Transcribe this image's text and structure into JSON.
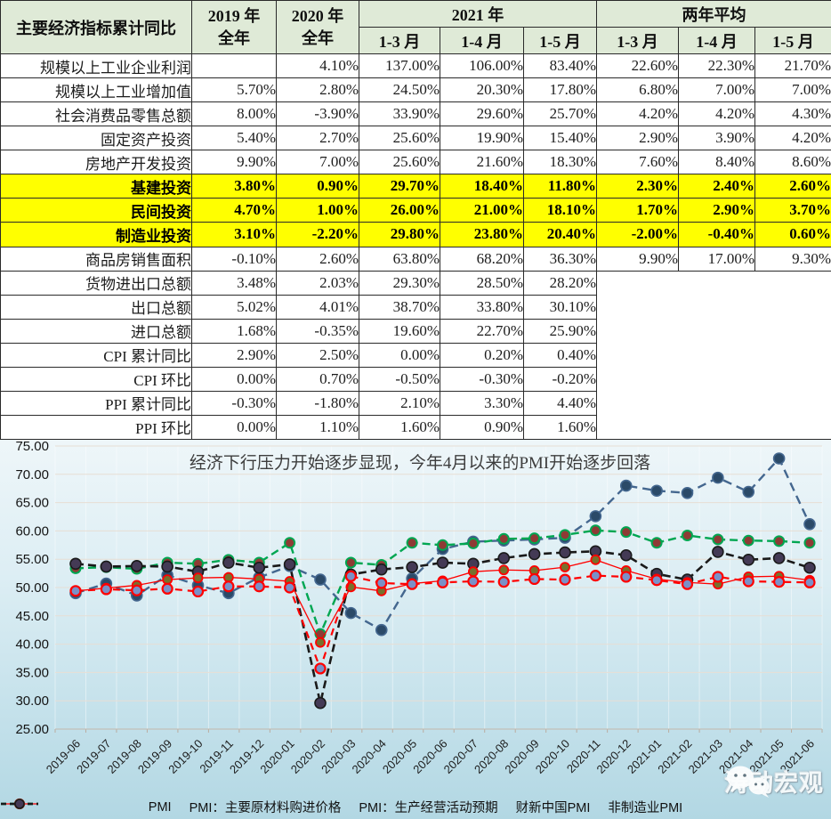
{
  "table": {
    "header": {
      "indicator": "主要经济指标累计同比",
      "col2019": [
        "2019 年",
        "全年"
      ],
      "col2020": [
        "2020 年",
        "全年"
      ],
      "group2021": "2021 年",
      "group2yr": "两年平均",
      "months": [
        "1-3 月",
        "1-4 月",
        "1-5 月"
      ]
    },
    "rows": [
      {
        "name": "规模以上工业企业利润",
        "highlight": false,
        "values": [
          "",
          "4.10%",
          "137.00%",
          "106.00%",
          "83.40%",
          "22.60%",
          "22.30%",
          "21.70%"
        ]
      },
      {
        "name": "规模以上工业增加值",
        "highlight": false,
        "values": [
          "5.70%",
          "2.80%",
          "24.50%",
          "20.30%",
          "17.80%",
          "6.80%",
          "7.00%",
          "7.00%"
        ]
      },
      {
        "name": "社会消费品零售总额",
        "highlight": false,
        "values": [
          "8.00%",
          "-3.90%",
          "33.90%",
          "29.60%",
          "25.70%",
          "4.20%",
          "4.20%",
          "4.30%"
        ]
      },
      {
        "name": "固定资产投资",
        "highlight": false,
        "values": [
          "5.40%",
          "2.70%",
          "25.60%",
          "19.90%",
          "15.40%",
          "2.90%",
          "3.90%",
          "4.20%"
        ]
      },
      {
        "name": "房地产开发投资",
        "highlight": false,
        "values": [
          "9.90%",
          "7.00%",
          "25.60%",
          "21.60%",
          "18.30%",
          "7.60%",
          "8.40%",
          "8.60%"
        ]
      },
      {
        "name": "基建投资",
        "highlight": true,
        "values": [
          "3.80%",
          "0.90%",
          "29.70%",
          "18.40%",
          "11.80%",
          "2.30%",
          "2.40%",
          "2.60%"
        ]
      },
      {
        "name": "民间投资",
        "highlight": true,
        "values": [
          "4.70%",
          "1.00%",
          "26.00%",
          "21.00%",
          "18.10%",
          "1.70%",
          "2.90%",
          "3.70%"
        ]
      },
      {
        "name": "制造业投资",
        "highlight": true,
        "values": [
          "3.10%",
          "-2.20%",
          "29.80%",
          "23.80%",
          "20.40%",
          "-2.00%",
          "-0.40%",
          "0.60%"
        ]
      },
      {
        "name": "商品房销售面积",
        "highlight": false,
        "values": [
          "-0.10%",
          "2.60%",
          "63.80%",
          "68.20%",
          "36.30%",
          "9.90%",
          "17.00%",
          "9.30%"
        ]
      },
      {
        "name": "货物进出口总额",
        "highlight": false,
        "values": [
          "3.48%",
          "2.03%",
          "29.30%",
          "28.50%",
          "28.20%"
        ]
      },
      {
        "name": "出口总额",
        "highlight": false,
        "values": [
          "5.02%",
          "4.01%",
          "38.70%",
          "33.80%",
          "30.10%"
        ]
      },
      {
        "name": "进口总额",
        "highlight": false,
        "values": [
          "1.68%",
          "-0.35%",
          "19.60%",
          "22.70%",
          "25.90%"
        ]
      },
      {
        "name": "CPI 累计同比",
        "highlight": false,
        "values": [
          "2.90%",
          "2.50%",
          "0.00%",
          "0.20%",
          "0.40%"
        ]
      },
      {
        "name": "CPI 环比",
        "highlight": false,
        "values": [
          "0.00%",
          "0.70%",
          "-0.50%",
          "-0.30%",
          "-0.20%"
        ]
      },
      {
        "name": "PPI 累计同比",
        "highlight": false,
        "values": [
          "-0.30%",
          "-1.80%",
          "2.10%",
          "3.30%",
          "4.40%"
        ]
      },
      {
        "name": "PPI 环比",
        "highlight": false,
        "values": [
          "0.00%",
          "1.10%",
          "1.60%",
          "0.90%",
          "1.60%"
        ]
      }
    ],
    "highlight_color": "#FFFF00",
    "header_color": "#DFEAD7"
  },
  "chart_data": {
    "type": "line",
    "title": "经济下行压力开始逐步显现，今年4月以来的PMI开始逐步回落",
    "x": [
      "2019-06",
      "2019-07",
      "2019-08",
      "2019-09",
      "2019-10",
      "2019-11",
      "2019-12",
      "2020-01",
      "2020-02",
      "2020-03",
      "2020-04",
      "2020-05",
      "2020-06",
      "2020-07",
      "2020-08",
      "2020-09",
      "2020-10",
      "2020-11",
      "2020-12",
      "2021-01",
      "2021-02",
      "2021-03",
      "2021-04",
      "2021-05",
      "2021-06"
    ],
    "series": [
      {
        "name": "PMI",
        "line_color": "#FF0000",
        "marker_color": "#7B90C7",
        "dash": "dashed",
        "values": [
          49.4,
          49.7,
          49.5,
          49.8,
          49.3,
          50.2,
          50.2,
          50.0,
          35.7,
          52.0,
          50.8,
          50.6,
          50.9,
          51.1,
          51.0,
          51.5,
          51.4,
          52.1,
          51.9,
          51.3,
          50.6,
          51.9,
          51.1,
          51.0,
          50.9
        ]
      },
      {
        "name": "PMI：主要原材料购进价格",
        "line_color": "#44678F",
        "marker_color": "#2B4A68",
        "dash": "dashed",
        "values": [
          49.0,
          50.7,
          48.6,
          52.2,
          50.4,
          49.0,
          51.8,
          53.8,
          51.4,
          45.5,
          42.5,
          51.6,
          56.8,
          58.1,
          58.3,
          58.5,
          58.8,
          62.6,
          68.0,
          67.1,
          66.7,
          69.4,
          66.9,
          72.8,
          61.2
        ]
      },
      {
        "name": "PMI：生产经营活动预期",
        "line_color": "#00A651",
        "marker_color": "#8E3B35",
        "dash": "dashed",
        "values": [
          53.4,
          53.6,
          53.3,
          54.4,
          54.2,
          54.9,
          54.4,
          57.9,
          41.8,
          54.4,
          54.0,
          57.9,
          57.5,
          57.8,
          58.6,
          58.7,
          59.3,
          60.1,
          59.8,
          57.9,
          59.2,
          58.5,
          58.3,
          58.2,
          57.9
        ]
      },
      {
        "name": "财新中国PMI",
        "line_color": "#FF0000",
        "marker_color": "#77702C",
        "dash": "solid",
        "values": [
          49.4,
          49.9,
          50.4,
          51.4,
          51.7,
          51.8,
          51.5,
          51.1,
          40.3,
          50.1,
          49.4,
          50.7,
          51.2,
          52.8,
          53.1,
          53.0,
          53.6,
          54.9,
          53.0,
          51.5,
          50.9,
          50.6,
          51.9,
          52.0,
          51.3
        ]
      },
      {
        "name": "非制造业PMI",
        "line_color": "#1A1A1A",
        "marker_color": "#443A55",
        "dash": "dashed",
        "values": [
          54.2,
          53.7,
          53.8,
          53.7,
          52.8,
          54.4,
          53.5,
          54.1,
          29.6,
          52.3,
          53.2,
          53.6,
          54.4,
          54.2,
          55.2,
          55.9,
          56.2,
          56.4,
          55.7,
          52.4,
          51.4,
          56.3,
          54.9,
          55.2,
          53.5
        ]
      }
    ],
    "ylim": [
      25,
      75
    ],
    "ytick_step": 5,
    "ytick_labels": [
      "25.00",
      "30.00",
      "35.00",
      "40.00",
      "45.00",
      "50.00",
      "55.00",
      "60.00",
      "65.00",
      "70.00",
      "75.00"
    ],
    "grid": true,
    "legend_position": "bottom"
  },
  "watermark": {
    "icon": "wechat-icon",
    "text": "涛动宏观"
  }
}
